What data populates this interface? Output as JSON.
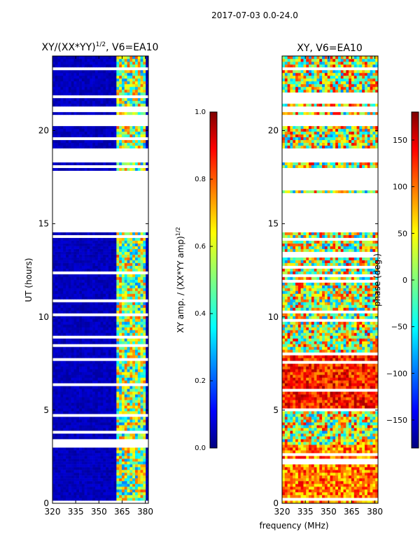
{
  "figure": {
    "suptitle": "2017-07-03 0.0-24.0",
    "xlabel_shared": "frequency (MHz)"
  },
  "chart_data": [
    {
      "type": "heatmap",
      "title": "XY/(XX*YY)",
      "title_exponent": "1/2",
      "title_suffix": ", V6=EA10",
      "xlabel": "frequency (MHz)",
      "ylabel": "UT (hours)",
      "xlim": [
        320,
        382
      ],
      "ylim": [
        0,
        24
      ],
      "xticks": [
        320,
        335,
        350,
        365,
        380
      ],
      "yticks": [
        0,
        5,
        10,
        15,
        20
      ],
      "colorbar": {
        "label": "XY amp. / (XX*YY amp)",
        "label_exponent": "1/2",
        "range": [
          0.0,
          1.0
        ],
        "ticks": [
          "0.0",
          "0.2",
          "0.4",
          "0.6",
          "0.8",
          "1.0"
        ],
        "colormap": "jet"
      },
      "gaps_ut": [
        [
          14.55,
          16.7
        ],
        [
          16.85,
          17.9
        ],
        [
          18.3,
          19.1
        ],
        [
          20.3,
          20.8
        ],
        [
          21.05,
          21.3
        ],
        [
          23.25,
          23.4
        ]
      ]
    },
    {
      "type": "heatmap",
      "title": "XY, V6=EA10",
      "xlabel": "frequency (MHz)",
      "ylabel": "",
      "xlim": [
        320,
        382
      ],
      "ylim": [
        0,
        24
      ],
      "xticks": [
        320,
        335,
        350,
        365,
        380
      ],
      "yticks": [
        0,
        5,
        10,
        15,
        20
      ],
      "colorbar": {
        "label": "phase (deg.)",
        "range": [
          -180,
          180
        ],
        "ticks": [
          "150",
          "100",
          "50",
          "0",
          "−50",
          "−100",
          "−150"
        ],
        "colormap": "jet"
      },
      "gaps_ut": [
        [
          14.55,
          16.7
        ],
        [
          16.85,
          17.9
        ],
        [
          18.3,
          19.1
        ],
        [
          20.3,
          20.8
        ],
        [
          21.05,
          21.3
        ],
        [
          23.25,
          23.4
        ]
      ]
    }
  ]
}
